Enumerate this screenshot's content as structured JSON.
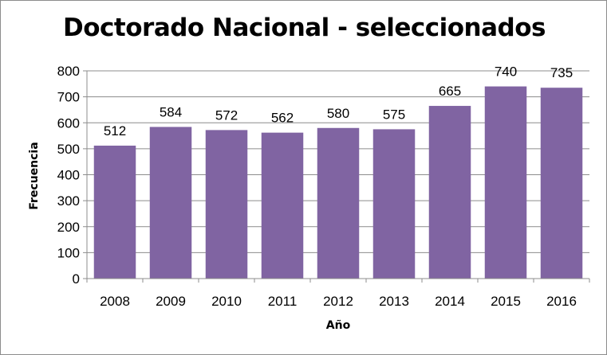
{
  "chart_data": {
    "type": "bar",
    "title": "Doctorado Nacional - seleccionados",
    "xlabel": "Año",
    "ylabel": "Frecuencia",
    "categories": [
      "2008",
      "2009",
      "2010",
      "2011",
      "2012",
      "2013",
      "2014",
      "2015",
      "2016"
    ],
    "values": [
      512,
      584,
      572,
      562,
      580,
      575,
      665,
      740,
      735
    ],
    "ylim": [
      0,
      800
    ],
    "yticks": [
      0,
      100,
      200,
      300,
      400,
      500,
      600,
      700,
      800
    ],
    "grid": true,
    "legend": "none",
    "bar_color": "#8064a2"
  }
}
